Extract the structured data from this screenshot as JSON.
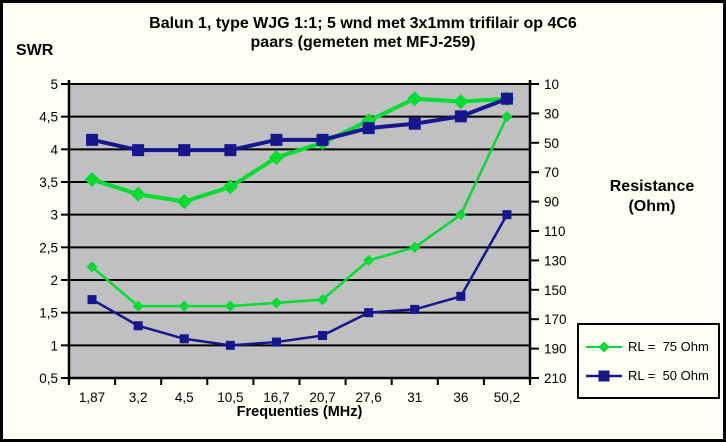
{
  "chart_data": {
    "type": "line",
    "title_lines": [
      "Balun 1, type WJG 1:1; 5 wnd met 3x1mm trifilair op 4C6",
      "paars (gemeten met MFJ-259)"
    ],
    "plot_bg": "#c0c0c0",
    "grid_color": "#000000",
    "left_axis": {
      "label": "SWR",
      "min": 0.5,
      "max": 5,
      "step": 0.5,
      "values": [
        5,
        4.5,
        4,
        3.5,
        3,
        2.5,
        2,
        1.5,
        1,
        0.5
      ],
      "tick_labels": [
        "5",
        "4,5",
        "4",
        "3,5",
        "3",
        "2,5",
        "2",
        "1,5",
        "1",
        "0,5"
      ]
    },
    "right_axis": {
      "label_lines": [
        "Resistance",
        "(Ohm)"
      ],
      "min": 10,
      "max": 210,
      "step": 20,
      "inverted": true,
      "values": [
        10,
        30,
        50,
        70,
        90,
        110,
        130,
        150,
        170,
        190,
        210
      ],
      "tick_labels": [
        "10",
        "30",
        "50",
        "70",
        "90",
        "110",
        "130",
        "150",
        "170",
        "190",
        "210"
      ]
    },
    "x_axis": {
      "label": "Frequenties (MHz)",
      "categories": [
        "1,87",
        "3,2",
        "4,5",
        "10,5",
        "16,7",
        "20,7",
        "27,6",
        "31",
        "36",
        "50,2"
      ]
    },
    "series": [
      {
        "name": "RL =  75 Ohm",
        "color": "#00dd30",
        "marker": "diamond",
        "swr": [
          2.2,
          1.6,
          1.6,
          1.6,
          1.65,
          1.7,
          2.3,
          2.5,
          3.0,
          4.5
        ],
        "resistance": [
          75,
          85,
          90,
          80,
          60,
          50,
          35,
          20,
          22,
          20
        ]
      },
      {
        "name": "RL =  50 Ohm",
        "color": "#16168e",
        "marker": "square",
        "swr": [
          1.7,
          1.3,
          1.1,
          1.0,
          1.05,
          1.15,
          1.5,
          1.55,
          1.75,
          3.0
        ],
        "resistance": [
          48,
          55,
          55,
          55,
          48,
          48,
          40,
          37,
          32,
          20
        ]
      }
    ],
    "legend": {
      "position": "bottom-right"
    }
  }
}
